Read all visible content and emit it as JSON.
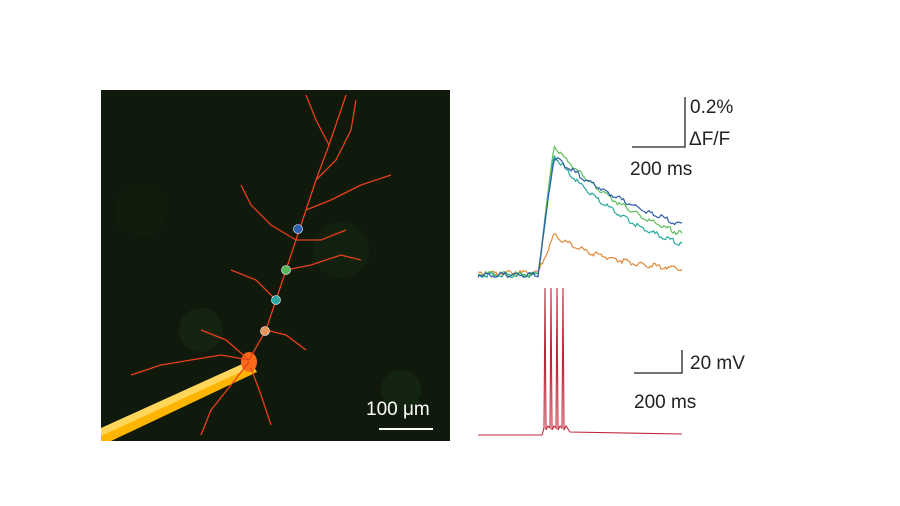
{
  "figure": {
    "microscopy": {
      "scale_bar_label": "100 μm",
      "background_color": "#0f1a0c",
      "dendrite_color": "#e8401a",
      "pipette_color": "#ffb400",
      "roi_markers": [
        {
          "name": "roi-blue",
          "color": "#2e5fb0"
        },
        {
          "name": "roi-green",
          "color": "#57b85a"
        },
        {
          "name": "roi-teal",
          "color": "#2aa9a6"
        },
        {
          "name": "roi-orange",
          "color": "#e8955a"
        }
      ]
    },
    "fluorescence_scale": {
      "amplitude_label": "0.2%",
      "ratio_label": "ΔF/F",
      "time_label": "200 ms"
    },
    "voltage_scale": {
      "amplitude_label": "20 mV",
      "time_label": "200 ms"
    },
    "trace_colors": {
      "blue": "#2e5fa8",
      "green": "#5cbf5a",
      "teal": "#2aaa9e",
      "orange": "#e08a3a",
      "voltage": "#c0263a"
    }
  }
}
